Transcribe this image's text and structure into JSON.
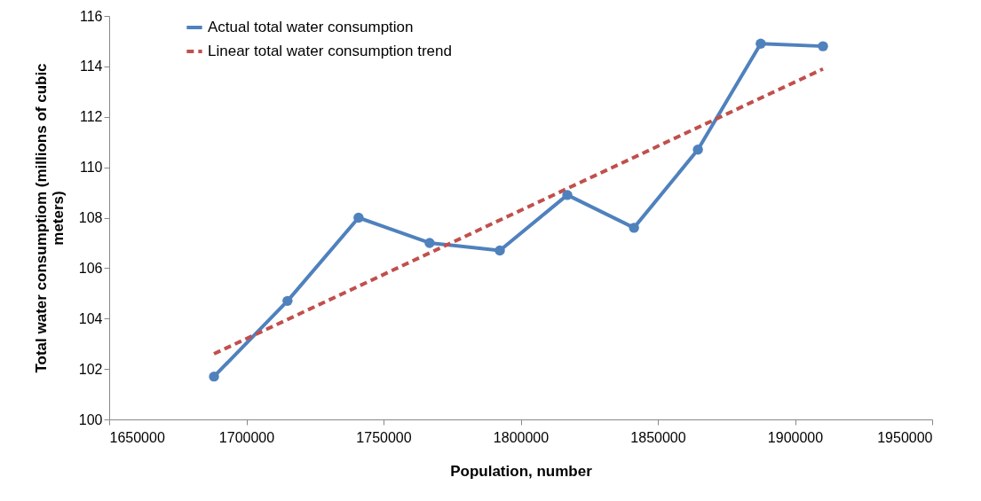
{
  "chart_data": {
    "type": "line",
    "xlabel": "Population, number",
    "ylabel": "Total water consumptiom (millions of cubic meters)",
    "xlim": [
      1650000,
      1950000
    ],
    "xticks": [
      1650000,
      1700000,
      1750000,
      1800000,
      1850000,
      1900000,
      1950000
    ],
    "ylim": [
      100,
      116
    ],
    "yticks": [
      100,
      102,
      104,
      106,
      108,
      110,
      112,
      114,
      116
    ],
    "grid": false,
    "legend": "top left",
    "series": [
      {
        "name": "Actual total water consumption",
        "color": "#4f81bd",
        "marker": "circle",
        "line_style": "solid",
        "x": [
          1688200,
          1715000,
          1740900,
          1766800,
          1792400,
          1817000,
          1841300,
          1864600,
          1887500,
          1910200
        ],
        "values": [
          101.7,
          104.7,
          108.0,
          107.0,
          106.7,
          108.9,
          107.6,
          110.7,
          114.9,
          114.8
        ]
      },
      {
        "name": "Linear total water consumption trend",
        "color": "#c0504d",
        "marker": "none",
        "line_style": "dashed",
        "x": [
          1688200,
          1910200
        ],
        "values": [
          102.6,
          113.9
        ]
      }
    ]
  }
}
